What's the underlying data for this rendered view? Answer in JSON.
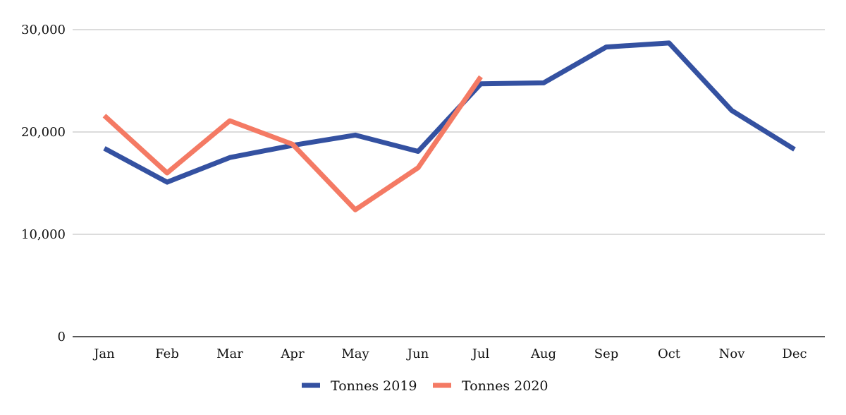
{
  "chart_data": {
    "type": "line",
    "categories": [
      "Jan",
      "Feb",
      "Mar",
      "Apr",
      "May",
      "Jun",
      "Jul",
      "Aug",
      "Sep",
      "Oct",
      "Nov",
      "Dec"
    ],
    "series": [
      {
        "name": "Tonnes 2019",
        "color": "#3451A1",
        "values": [
          18400,
          15100,
          17500,
          18700,
          19700,
          18100,
          24700,
          24800,
          28300,
          28700,
          22100,
          18300
        ]
      },
      {
        "name": "Tonnes 2020",
        "color": "#F47A64",
        "values": [
          21600,
          16000,
          21100,
          18800,
          12400,
          16500,
          25400,
          null,
          null,
          null,
          null,
          null
        ]
      }
    ],
    "ylim": [
      0,
      30000
    ],
    "yticks": [
      0,
      10000,
      20000,
      30000
    ],
    "ytick_labels": [
      "0",
      "10,000",
      "20,000",
      "30,000"
    ],
    "grid": true,
    "legend_position": "bottom",
    "title": "",
    "xlabel": "",
    "ylabel": ""
  }
}
